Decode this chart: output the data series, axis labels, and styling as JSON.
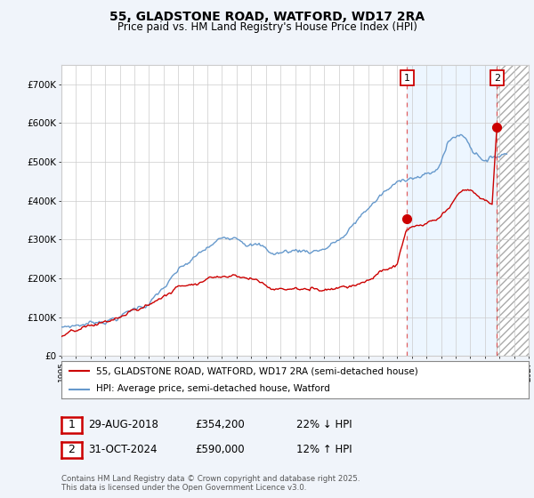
{
  "title": "55, GLADSTONE ROAD, WATFORD, WD17 2RA",
  "subtitle": "Price paid vs. HM Land Registry's House Price Index (HPI)",
  "ytick_labels": [
    "£0",
    "£100K",
    "£200K",
    "£300K",
    "£400K",
    "£500K",
    "£600K",
    "£700K"
  ],
  "yticks": [
    0,
    100000,
    200000,
    300000,
    400000,
    500000,
    600000,
    700000
  ],
  "xlim_start": 1995,
  "xlim_end": 2027,
  "ylim_min": 0,
  "ylim_max": 750000,
  "legend_label_property": "55, GLADSTONE ROAD, WATFORD, WD17 2RA (semi-detached house)",
  "legend_label_hpi": "HPI: Average price, semi-detached house, Watford",
  "property_color": "#cc0000",
  "hpi_color": "#6699cc",
  "marker1_date": 2018.66,
  "marker1_price": 354200,
  "marker2_date": 2024.83,
  "marker2_price": 590000,
  "shade_color": "#ddeeff",
  "hatch_color": "#bbbbbb",
  "vline_color": "#dd4444",
  "background_color": "#f0f4fa",
  "footer": "Contains HM Land Registry data © Crown copyright and database right 2025.\nThis data is licensed under the Open Government Licence v3.0."
}
